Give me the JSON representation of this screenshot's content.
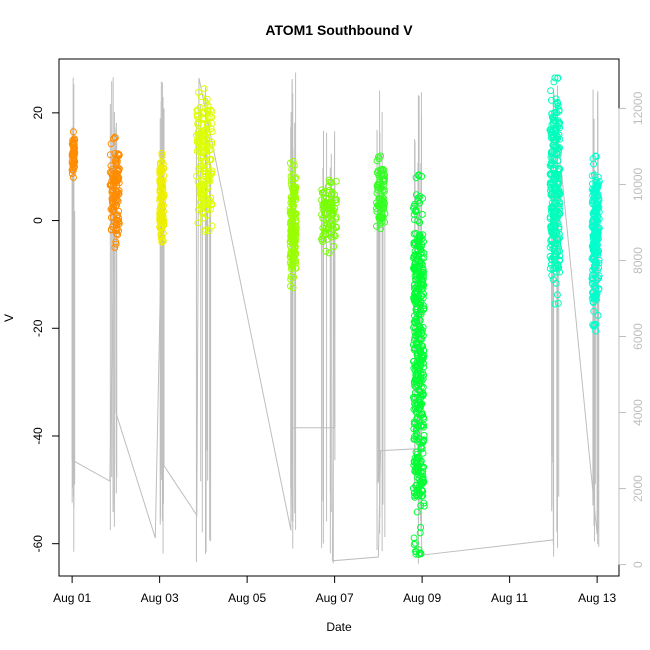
{
  "chart_data": {
    "type": "scatter",
    "title": "ATOM1 Southbound V",
    "xlabel": "Date",
    "ylabel": "V",
    "x_ticks": [
      "Aug 01",
      "Aug 03",
      "Aug 05",
      "Aug 07",
      "Aug 09",
      "Aug 11",
      "Aug 13"
    ],
    "y_ticks": [
      20,
      0,
      -20,
      -40,
      -60
    ],
    "y2_ticks": [
      0,
      2000,
      4000,
      6000,
      8000,
      10000,
      12000
    ],
    "xlim_days": [
      0.7,
      13.5
    ],
    "ylim": [
      -66,
      30
    ],
    "y2lim": [
      -300,
      13300
    ],
    "colors": {
      "background_series": "#bebebe",
      "axis": "#000000",
      "secondary_axis": "#bebebe"
    },
    "clusters": [
      {
        "date": "Aug 01",
        "x_start": 1.0,
        "x_end": 1.06,
        "y_min": 8,
        "y_max": 16.5,
        "color": "#ff8c00"
      },
      {
        "date": "Aug 01",
        "x_start": 1.87,
        "x_end": 2.08,
        "y_min": -5,
        "y_max": 15.5,
        "color": "#ff8c00"
      },
      {
        "date": "Aug 03",
        "x_start": 3.0,
        "x_end": 3.1,
        "y_min": -4,
        "y_max": 12.5,
        "color": "#eeee00"
      },
      {
        "date": "Aug 03",
        "x_start": 3.84,
        "x_end": 4.2,
        "y_min": -2,
        "y_max": 24.5,
        "color": "#ddff00"
      },
      {
        "date": "Aug 05",
        "x_start": 5.98,
        "x_end": 6.12,
        "y_min": -12.5,
        "y_max": 11,
        "color": "#99ff00"
      },
      {
        "date": "Aug 07",
        "x_start": 6.7,
        "x_end": 7.05,
        "y_min": -6,
        "y_max": 7.5,
        "color": "#77ff00"
      },
      {
        "date": "Aug 07",
        "x_start": 7.95,
        "x_end": 8.15,
        "y_min": -1.5,
        "y_max": 12,
        "color": "#33ff22"
      },
      {
        "date": "Aug 09",
        "x_start": 8.8,
        "x_end": 9.05,
        "y_min": -62,
        "y_max": 8.5,
        "color": "#00ff33"
      },
      {
        "date": "Aug 11",
        "x_start": 11.92,
        "x_end": 12.15,
        "y_min": -15.5,
        "y_max": 26.5,
        "color": "#00ffbb"
      },
      {
        "date": "Aug 13",
        "x_start": 12.88,
        "x_end": 13.05,
        "y_min": -20.5,
        "y_max": 12,
        "color": "#00ffcc"
      }
    ],
    "background_series": [
      {
        "x": 1.0,
        "y2": 11500
      },
      {
        "x": 1.0,
        "y2": 2750
      },
      {
        "x": 1.86,
        "y2": 2200
      },
      {
        "x": 2.0,
        "y2": 11500
      },
      {
        "x": 2.0,
        "y2": 4000
      },
      {
        "x": 2.9,
        "y2": 700
      },
      {
        "x": 3.1,
        "y2": 12000
      },
      {
        "x": 3.1,
        "y2": 2600
      },
      {
        "x": 3.85,
        "y2": 1300
      },
      {
        "x": 3.9,
        "y2": 12800
      },
      {
        "x": 6.0,
        "y2": 900
      },
      {
        "x": 6.0,
        "y2": 3600
      },
      {
        "x": 7.0,
        "y2": 3600
      },
      {
        "x": 7.0,
        "y2": 11400
      },
      {
        "x": 6.95,
        "y2": 100
      },
      {
        "x": 8.0,
        "y2": 200
      },
      {
        "x": 8.05,
        "y2": 3000
      },
      {
        "x": 8.9,
        "y2": 3050
      },
      {
        "x": 9.0,
        "y2": 250
      },
      {
        "x": 12.0,
        "y2": 650
      },
      {
        "x": 12.0,
        "y2": 12500
      },
      {
        "x": 13.0,
        "y2": 800
      },
      {
        "x": 13.0,
        "y2": 9500
      }
    ]
  }
}
